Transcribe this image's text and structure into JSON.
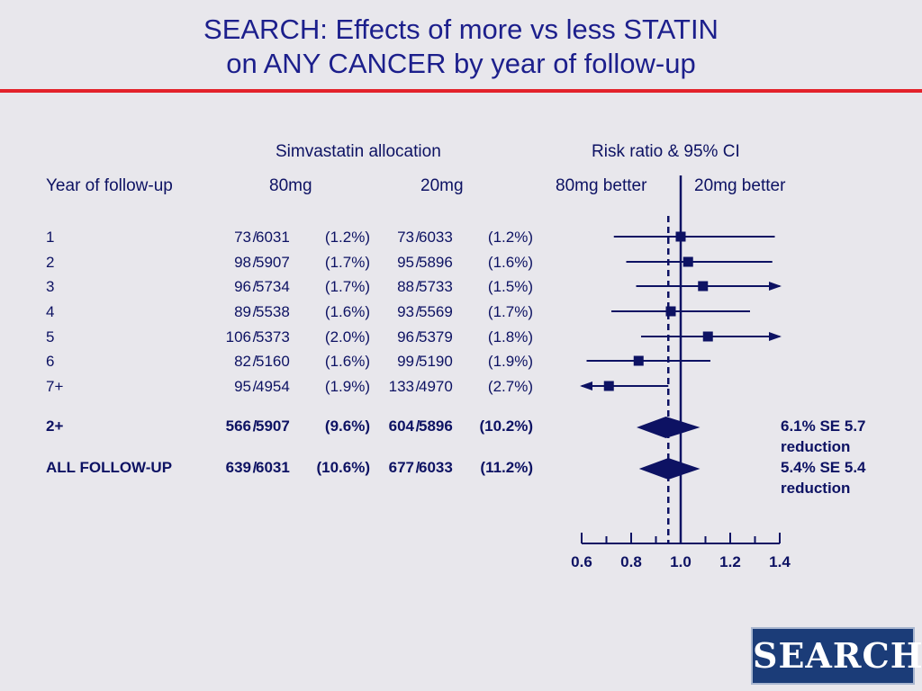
{
  "title": {
    "line1": "SEARCH: Effects of more vs less STATIN",
    "line2": "on ANY CANCER by year of follow-up"
  },
  "headers": {
    "allocation": "Simvastatin allocation",
    "risk_ratio": "Risk ratio & 95% CI",
    "year": "Year of follow-up",
    "col_80mg": "80mg",
    "col_20mg": "20mg",
    "better_80": "80mg better",
    "better_20": "20mg better"
  },
  "chart_data": {
    "type": "forest",
    "x_axis": {
      "min": 0.6,
      "max": 1.4,
      "ticks": [
        "0.6",
        "0.8",
        "1.0",
        "1.2",
        "1.4"
      ],
      "minor_step": 0.1
    },
    "reference_line": 1.0,
    "overall_dashed_line": 0.95,
    "rows": [
      {
        "label": "1",
        "a_events": "73",
        "a_total": "6031",
        "a_pct": "(1.2%)",
        "b_events": "73",
        "b_total": "6033",
        "b_pct": "(1.2%)",
        "rr": 1.0,
        "lo": 0.73,
        "hi": 1.38,
        "arrow": ""
      },
      {
        "label": "2",
        "a_events": "98",
        "a_total": "5907",
        "a_pct": "(1.7%)",
        "b_events": "95",
        "b_total": "5896",
        "b_pct": "(1.6%)",
        "rr": 1.03,
        "lo": 0.78,
        "hi": 1.37,
        "arrow": ""
      },
      {
        "label": "3",
        "a_events": "96",
        "a_total": "5734",
        "a_pct": "(1.7%)",
        "b_events": "88",
        "b_total": "5733",
        "b_pct": "(1.5%)",
        "rr": 1.09,
        "lo": 0.82,
        "hi": 1.4,
        "arrow": "right"
      },
      {
        "label": "4",
        "a_events": "89",
        "a_total": "5538",
        "a_pct": "(1.6%)",
        "b_events": "93",
        "b_total": "5569",
        "b_pct": "(1.7%)",
        "rr": 0.96,
        "lo": 0.72,
        "hi": 1.28,
        "arrow": ""
      },
      {
        "label": "5",
        "a_events": "106",
        "a_total": "5373",
        "a_pct": "(2.0%)",
        "b_events": "96",
        "b_total": "5379",
        "b_pct": "(1.8%)",
        "rr": 1.11,
        "lo": 0.84,
        "hi": 1.4,
        "arrow": "right"
      },
      {
        "label": "6",
        "a_events": "82",
        "a_total": "5160",
        "a_pct": "(1.6%)",
        "b_events": "99",
        "b_total": "5190",
        "b_pct": "(1.9%)",
        "rr": 0.83,
        "lo": 0.62,
        "hi": 1.12,
        "arrow": ""
      },
      {
        "label": "7+",
        "a_events": "95",
        "a_total": "4954",
        "a_pct": "(1.9%)",
        "b_events": "133",
        "b_total": "4970",
        "b_pct": "(2.7%)",
        "rr": 0.71,
        "lo": 0.6,
        "hi": 0.95,
        "arrow": "left"
      }
    ],
    "summaries": [
      {
        "label": "2+",
        "a_events": "566",
        "a_total": "5907",
        "a_pct": "(9.6%)",
        "b_events": "604",
        "b_total": "5896",
        "b_pct": "(10.2%)",
        "rr": 0.94,
        "lo": 0.84,
        "hi": 1.06,
        "note1": "6.1% SE 5.7",
        "note2": "reduction"
      },
      {
        "label": "ALL FOLLOW-UP",
        "a_events": "639",
        "a_total": "6031",
        "a_pct": "(10.6%)",
        "b_events": "677",
        "b_total": "6033",
        "b_pct": "(11.2%)",
        "rr": 0.95,
        "lo": 0.85,
        "hi": 1.06,
        "note1": "5.4% SE 5.4",
        "note2": "reduction"
      }
    ]
  },
  "colors": {
    "ink": "#0d1263",
    "title": "#1c1f8c",
    "rule": "#e3222b",
    "background": "#e8e7ec",
    "logo_bg": "#1b3c78"
  },
  "logo": {
    "text": "SEARCH"
  }
}
